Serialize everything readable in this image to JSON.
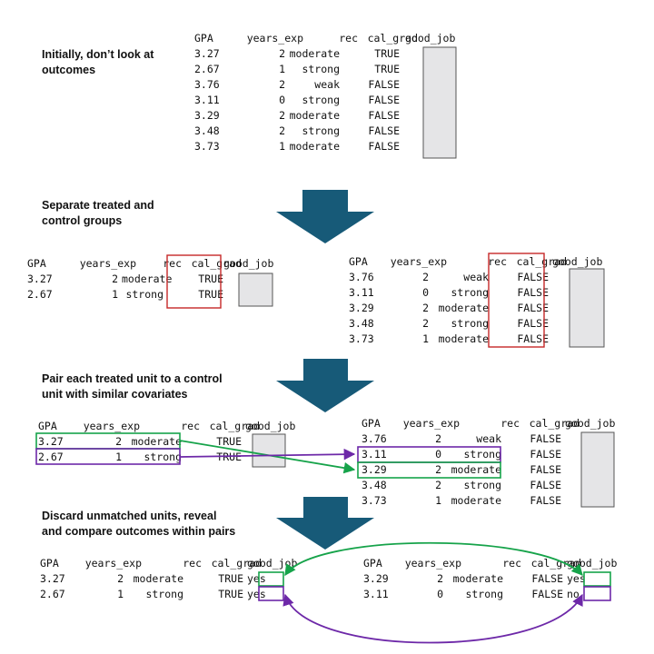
{
  "steps": [
    [
      "Initially, don’t look at",
      "outcomes"
    ],
    [
      "Separate treated and",
      "control groups"
    ],
    [
      "Pair each treated unit to a control",
      "unit with similar covariates"
    ],
    [
      "Discard unmatched units,  reveal",
      "and compare outcomes within pairs"
    ]
  ],
  "headers": [
    "GPA",
    "years_exp",
    "rec",
    "cal_grad",
    "good_job"
  ],
  "all_rows": [
    [
      "3.27",
      "2",
      "moderate",
      "TRUE"
    ],
    [
      "2.67",
      "1",
      "strong",
      "TRUE"
    ],
    [
      "3.76",
      "2",
      "weak",
      "FALSE"
    ],
    [
      "3.11",
      "0",
      "strong",
      "FALSE"
    ],
    [
      "3.29",
      "2",
      "moderate",
      "FALSE"
    ],
    [
      "3.48",
      "2",
      "strong",
      "FALSE"
    ],
    [
      "3.73",
      "1",
      "moderate",
      "FALSE"
    ]
  ],
  "treated_rows": [
    [
      "3.27",
      "2",
      "moderate",
      "TRUE"
    ],
    [
      "2.67",
      "1",
      "strong",
      "TRUE"
    ]
  ],
  "control_rows": [
    [
      "3.76",
      "2",
      "weak",
      "FALSE"
    ],
    [
      "3.11",
      "0",
      "strong",
      "FALSE"
    ],
    [
      "3.29",
      "2",
      "moderate",
      "FALSE"
    ],
    [
      "3.48",
      "2",
      "strong",
      "FALSE"
    ],
    [
      "3.73",
      "1",
      "moderate",
      "FALSE"
    ]
  ],
  "final_treated": [
    [
      "3.27",
      "2",
      "moderate",
      "TRUE",
      "yes"
    ],
    [
      "2.67",
      "1",
      "strong",
      "TRUE",
      "yes"
    ]
  ],
  "final_control": [
    [
      "3.29",
      "2",
      "moderate",
      "FALSE",
      "yes"
    ],
    [
      "3.11",
      "0",
      "strong",
      "FALSE",
      "no"
    ]
  ],
  "colors": {
    "arrow": "#175a78",
    "box_red": "#c62828",
    "pair_green": "#16a34a",
    "pair_purple": "#6d28a8",
    "hidden_fill": "#e5e5e7",
    "hidden_stroke": "#555555"
  }
}
